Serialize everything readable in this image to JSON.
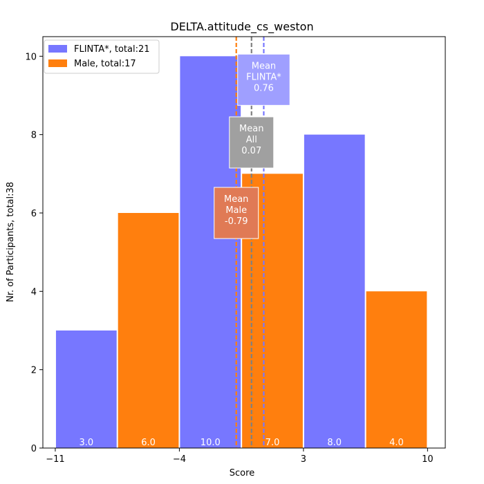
{
  "chart_data": {
    "type": "bar",
    "title": "DELTA.attitude_cs_weston",
    "xlabel": "Score",
    "ylabel": "Nr. of Participants, total:38",
    "xlim": [
      -11.7,
      11.0
    ],
    "ylim": [
      0,
      10.5
    ],
    "xticks": [
      -11,
      -4,
      3,
      10
    ],
    "xtick_labels": [
      "−11",
      "−4",
      "3",
      "10"
    ],
    "yticks": [
      0,
      2,
      4,
      6,
      8,
      10
    ],
    "ytick_labels": [
      "0",
      "2",
      "4",
      "6",
      "8",
      "10"
    ],
    "series": [
      {
        "name": "FLINTA*",
        "legend_label": "FLINTA*, total:21",
        "color": "#7777ff",
        "bars": [
          {
            "x0": -11.0,
            "x1": -7.5,
            "value": 3,
            "label": "3.0"
          },
          {
            "x0": -4.0,
            "x1": -0.5,
            "value": 10,
            "label": "10.0"
          },
          {
            "x0": 3.0,
            "x1": 6.5,
            "value": 8,
            "label": "8.0"
          }
        ]
      },
      {
        "name": "Male",
        "legend_label": "Male, total:17",
        "color": "#ff7f0e",
        "bars": [
          {
            "x0": -7.5,
            "x1": -4.0,
            "value": 6,
            "label": "6.0"
          },
          {
            "x0": -0.5,
            "x1": 3.0,
            "value": 7,
            "label": "7.0"
          },
          {
            "x0": 6.5,
            "x1": 10.0,
            "value": 4,
            "label": "4.0"
          }
        ]
      }
    ],
    "mean_lines": [
      {
        "name": "Male",
        "x": -0.79,
        "color": "#ff7f0e",
        "box_color": "#e07a55",
        "lines": [
          "Mean",
          "Male",
          "-0.79"
        ],
        "label_y": 6.0
      },
      {
        "name": "All",
        "x": 0.07,
        "color": "#808080",
        "box_color": "#a0a0a0",
        "lines": [
          "Mean",
          "All",
          "0.07"
        ],
        "label_y": 7.8
      },
      {
        "name": "FLINTA*",
        "x": 0.76,
        "color": "#7777ff",
        "box_color": "#9f9fff",
        "lines": [
          "Mean",
          "FLINTA*",
          "0.76"
        ],
        "label_y": 9.4
      }
    ],
    "legend_position": "upper-left"
  }
}
